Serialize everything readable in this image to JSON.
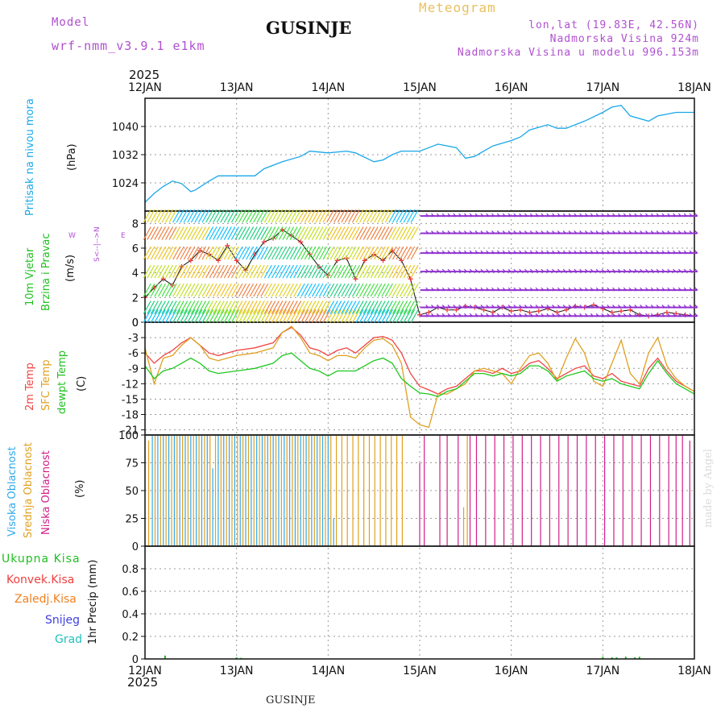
{
  "header": {
    "model_label": "Model",
    "model_name": "wrf-nmm_v3.9.1 e1km",
    "station": "GUSINJE",
    "product": "Meteogram",
    "coords": "lon,lat (19.83E, 42.56N)",
    "altitude": "Nadmorska Visina 924m",
    "model_altitude": "Nadmorska Visina u modelu 996.153m",
    "year_top": "2025",
    "year_bottom": "2025",
    "footer_station": "GUSINJE",
    "credit": "made by Angel"
  },
  "colors": {
    "pressure": "#1aa7e8",
    "t2m": "#f04545",
    "sfc": "#e0a020",
    "dewpt": "#20c820",
    "high_cloud": "#30a8e8",
    "mid_cloud": "#e0a020",
    "low_cloud": "#d0208a",
    "total_precip": "#20c020",
    "conv_precip": "#f04040",
    "frz_precip": "#f08020",
    "snow": "#4040e0",
    "hail": "#20c0c0",
    "model_label": "#b050d0"
  },
  "x_axis": {
    "ticks": [
      "12JAN",
      "13JAN",
      "14JAN",
      "15JAN",
      "16JAN",
      "17JAN",
      "18JAN"
    ]
  },
  "panel_labels": {
    "pressure": {
      "name": "Pritisak na nivou mora",
      "unit": "(hPa)"
    },
    "wind": {
      "name1": "10m Vjetar",
      "name2": "Brzina i Pravac",
      "unit": "(m/s)",
      "compass_ns": "S<--|-->N",
      "compass_w": "W",
      "compass_e": "E"
    },
    "temp": {
      "name1": "2m Temp",
      "name2": "SFC Temp",
      "name3": "dewpt Temp",
      "unit": "(C)"
    },
    "cloud": {
      "name1": "Visoka Oblacnost",
      "name2": "Srednja Oblacnost",
      "name3": "Niska Oblacnost",
      "unit": "(%)"
    },
    "precip": {
      "l1": "Ukupna Kisa",
      "l2": "Konvek.Kisa",
      "l3": "Zaledj.Kisa",
      "l4": "Snijeg",
      "l5": "Grad",
      "unit": "1hr Precip (mm)"
    }
  },
  "chart_data": [
    {
      "type": "line",
      "panel": "pressure",
      "ylabel": "(hPa)",
      "ylim": [
        1016,
        1048
      ],
      "yticks": [
        1024,
        1032,
        1040
      ],
      "x_unit": "days since 12JAN 00Z",
      "series": [
        {
          "name": "Pritisak na nivou mora",
          "x": [
            0,
            0.1,
            0.2,
            0.3,
            0.4,
            0.5,
            0.55,
            0.7,
            0.8,
            0.9,
            1.0,
            1.2,
            1.3,
            1.5,
            1.7,
            1.8,
            2.0,
            2.2,
            2.3,
            2.5,
            2.6,
            2.7,
            2.8,
            3.0,
            3.1,
            3.2,
            3.4,
            3.5,
            3.6,
            3.7,
            3.8,
            4.0,
            4.1,
            4.2,
            4.4,
            4.5,
            4.6,
            4.8,
            5.0,
            5.1,
            5.2,
            5.3,
            5.5,
            5.6,
            5.8,
            6.0
          ],
          "values": [
            1018.5,
            1021,
            1023,
            1024.5,
            1023.8,
            1021.5,
            1022,
            1024.5,
            1026,
            1026,
            1026,
            1026,
            1028,
            1030,
            1031.5,
            1033,
            1032.5,
            1033,
            1032.5,
            1030,
            1030.5,
            1032,
            1033,
            1033,
            1034,
            1035,
            1034,
            1031,
            1031.5,
            1033,
            1034.5,
            1036,
            1037,
            1039,
            1040.5,
            1039.5,
            1039.5,
            1041.5,
            1044,
            1045.5,
            1046,
            1043,
            1041.5,
            1043,
            1044,
            1044
          ]
        }
      ]
    },
    {
      "type": "line",
      "panel": "wind",
      "ylabel": "(m/s)",
      "ylim": [
        0,
        9
      ],
      "yticks": [
        0,
        2,
        4,
        6,
        8
      ],
      "x_unit": "days since 12JAN 00Z",
      "series": [
        {
          "name": "10m Vjetar",
          "x": [
            0,
            0.1,
            0.2,
            0.3,
            0.4,
            0.5,
            0.6,
            0.7,
            0.8,
            0.9,
            1.0,
            1.1,
            1.2,
            1.3,
            1.4,
            1.5,
            1.6,
            1.7,
            1.8,
            1.9,
            2.0,
            2.1,
            2.2,
            2.3,
            2.4,
            2.5,
            2.6,
            2.7,
            2.8,
            2.9,
            3.0,
            3.1,
            3.2,
            3.3,
            3.4,
            3.5,
            3.6,
            3.7,
            3.8,
            3.9,
            4.0,
            4.1,
            4.2,
            4.3,
            4.4,
            4.5,
            4.6,
            4.7,
            4.8,
            4.9,
            5.0,
            5.1,
            5.2,
            5.3,
            5.4,
            5.5,
            5.6,
            5.7,
            5.8,
            5.9,
            6.0
          ],
          "values": [
            2.0,
            2.8,
            3.5,
            3.0,
            4.5,
            5.0,
            5.8,
            5.5,
            5.0,
            6.2,
            5.0,
            4.2,
            5.5,
            6.5,
            6.8,
            7.5,
            7.0,
            6.5,
            5.5,
            4.5,
            3.8,
            5.0,
            5.2,
            3.5,
            5.0,
            5.5,
            5.0,
            5.8,
            5.0,
            3.5,
            0.6,
            0.8,
            1.2,
            1.0,
            1.0,
            1.3,
            1.2,
            1.0,
            0.8,
            1.2,
            0.9,
            1.0,
            0.8,
            0.9,
            1.1,
            0.8,
            1.0,
            1.3,
            1.2,
            1.4,
            1.1,
            0.8,
            0.9,
            1.0,
            0.6,
            0.5,
            0.6,
            0.8,
            0.7,
            0.6,
            0.5
          ]
        }
      ]
    },
    {
      "type": "line",
      "panel": "temperature",
      "ylabel": "(C)",
      "ylim": [
        -22,
        0
      ],
      "yticks": [
        0,
        -3,
        -6,
        -9,
        -12,
        -15,
        -18,
        -21
      ],
      "x_unit": "days since 12JAN 00Z",
      "series": [
        {
          "name": "2m Temp",
          "x": [
            0,
            0.1,
            0.2,
            0.3,
            0.4,
            0.5,
            0.6,
            0.7,
            0.8,
            1.0,
            1.2,
            1.4,
            1.5,
            1.6,
            1.7,
            1.8,
            1.9,
            2.0,
            2.1,
            2.2,
            2.3,
            2.4,
            2.5,
            2.6,
            2.7,
            2.8,
            2.9,
            3.0,
            3.1,
            3.2,
            3.3,
            3.4,
            3.5,
            3.6,
            3.7,
            3.8,
            3.9,
            4.0,
            4.1,
            4.2,
            4.3,
            4.4,
            4.5,
            4.6,
            4.7,
            4.8,
            4.9,
            5.0,
            5.1,
            5.2,
            5.3,
            5.4,
            5.5,
            5.6,
            5.7,
            5.8,
            5.9,
            6.0
          ],
          "values": [
            -6,
            -8,
            -6.5,
            -5.5,
            -4,
            -3,
            -4.5,
            -6,
            -6.5,
            -5.5,
            -5,
            -4,
            -2,
            -1,
            -2.5,
            -5,
            -5.5,
            -6.5,
            -5.5,
            -5,
            -6,
            -4.5,
            -3,
            -2.8,
            -3.5,
            -6,
            -10,
            -12.5,
            -13.2,
            -14,
            -13,
            -12.5,
            -11,
            -9.5,
            -9.5,
            -10,
            -9,
            -10,
            -9.5,
            -8,
            -7.5,
            -9,
            -11,
            -10,
            -9,
            -8.5,
            -10.5,
            -11,
            -10,
            -11.5,
            -12,
            -12.5,
            -9,
            -7,
            -9.5,
            -11.5,
            -12.5,
            -13.5
          ]
        },
        {
          "name": "SFC Temp",
          "x": [
            0,
            0.1,
            0.2,
            0.3,
            0.4,
            0.5,
            0.6,
            0.7,
            0.8,
            1.0,
            1.2,
            1.4,
            1.5,
            1.6,
            1.7,
            1.8,
            1.9,
            2.0,
            2.1,
            2.2,
            2.3,
            2.4,
            2.5,
            2.6,
            2.7,
            2.8,
            2.9,
            3.0,
            3.1,
            3.2,
            3.3,
            3.4,
            3.5,
            3.6,
            3.7,
            3.8,
            3.9,
            4.0,
            4.1,
            4.2,
            4.3,
            4.4,
            4.5,
            4.6,
            4.7,
            4.8,
            4.9,
            5.0,
            5.1,
            5.2,
            5.3,
            5.4,
            5.5,
            5.6,
            5.7,
            5.8,
            5.9,
            6.0
          ],
          "values": [
            -5,
            -12,
            -7,
            -6.5,
            -4.5,
            -3,
            -4.5,
            -7,
            -7.5,
            -6.5,
            -6,
            -5,
            -2,
            -0.8,
            -3,
            -6,
            -6.5,
            -7.5,
            -6.5,
            -6.5,
            -7,
            -5,
            -3.5,
            -3.2,
            -4.5,
            -8,
            -18.5,
            -20,
            -20.5,
            -14,
            -14,
            -13,
            -12,
            -9.5,
            -9,
            -9.5,
            -10,
            -12,
            -9,
            -6.5,
            -6,
            -8,
            -11.5,
            -7,
            -3.2,
            -6,
            -11.5,
            -12.5,
            -8,
            -3.5,
            -10,
            -12,
            -6,
            -3,
            -8.5,
            -11,
            -12.5,
            -13.5
          ]
        },
        {
          "name": "dewpt Temp",
          "x": [
            0,
            0.1,
            0.2,
            0.3,
            0.4,
            0.5,
            0.6,
            0.7,
            0.8,
            1.0,
            1.2,
            1.4,
            1.5,
            1.6,
            1.7,
            1.8,
            1.9,
            2.0,
            2.1,
            2.2,
            2.3,
            2.4,
            2.5,
            2.6,
            2.7,
            2.8,
            2.9,
            3.0,
            3.1,
            3.2,
            3.3,
            3.4,
            3.5,
            3.6,
            3.7,
            3.8,
            3.9,
            4.0,
            4.1,
            4.2,
            4.3,
            4.4,
            4.5,
            4.6,
            4.7,
            4.8,
            4.9,
            5.0,
            5.1,
            5.2,
            5.3,
            5.4,
            5.5,
            5.6,
            5.7,
            5.8,
            5.9,
            6.0
          ],
          "values": [
            -8.5,
            -11,
            -9.5,
            -9,
            -8,
            -7,
            -8,
            -9.5,
            -10,
            -9.5,
            -9,
            -8,
            -6.5,
            -6,
            -7.5,
            -9,
            -9.5,
            -10.5,
            -9.5,
            -9.5,
            -9.5,
            -8.5,
            -7.5,
            -7,
            -8,
            -11,
            -12.5,
            -13.8,
            -14,
            -14.5,
            -13.5,
            -13,
            -11.5,
            -10,
            -10,
            -10.5,
            -10,
            -10.5,
            -10,
            -8.5,
            -8.5,
            -9.5,
            -11.5,
            -10.5,
            -10,
            -9.5,
            -11,
            -11.5,
            -11,
            -12,
            -12.5,
            -13,
            -10,
            -7.5,
            -10,
            -12,
            -13,
            -14
          ]
        }
      ]
    },
    {
      "type": "bar",
      "panel": "cloud",
      "ylabel": "(%)",
      "ylim": [
        0,
        100
      ],
      "yticks": [
        0,
        25,
        50,
        75,
        100
      ],
      "x_unit": "days since 12JAN 00Z",
      "series": [
        {
          "name": "Visoka Oblacnost",
          "x": [
            0.08,
            0.14,
            0.2,
            0.26,
            0.32,
            0.38,
            0.44,
            0.5,
            0.56,
            0.62,
            0.68,
            0.74,
            0.8,
            0.86,
            0.92,
            0.98,
            1.04,
            1.1,
            1.16,
            1.22,
            1.28,
            1.34,
            1.4,
            1.46,
            1.52,
            1.58,
            1.64,
            1.7,
            1.76,
            1.82,
            1.88,
            1.94,
            2.0,
            2.06
          ],
          "values": [
            100,
            100,
            100,
            100,
            100,
            100,
            100,
            100,
            100,
            100,
            100,
            70,
            100,
            100,
            100,
            100,
            100,
            100,
            100,
            100,
            100,
            100,
            100,
            100,
            100,
            100,
            100,
            100,
            100,
            100,
            100,
            100,
            100,
            25
          ]
        },
        {
          "name": "Srednja Oblacnost",
          "x": [
            0.04,
            0.11,
            0.17,
            0.23,
            0.29,
            0.35,
            0.41,
            0.47,
            0.53,
            0.59,
            0.65,
            0.71,
            0.77,
            0.83,
            0.89,
            0.95,
            1.01,
            1.07,
            1.13,
            1.19,
            1.25,
            1.31,
            1.37,
            1.43,
            1.49,
            1.55,
            1.61,
            1.67,
            1.73,
            1.79,
            1.85,
            1.91,
            1.97,
            2.03,
            2.09,
            2.15,
            2.21,
            2.27,
            2.33,
            2.39,
            2.45,
            2.51,
            2.57,
            2.63,
            2.69,
            2.75,
            2.81,
            3.48,
            3.52
          ],
          "values": [
            95,
            100,
            100,
            100,
            100,
            100,
            100,
            100,
            100,
            100,
            100,
            100,
            100,
            100,
            100,
            100,
            100,
            100,
            100,
            100,
            100,
            100,
            100,
            100,
            100,
            100,
            100,
            100,
            100,
            100,
            100,
            100,
            100,
            100,
            100,
            100,
            100,
            100,
            100,
            100,
            100,
            100,
            100,
            100,
            100,
            100,
            100,
            35,
            100
          ]
        },
        {
          "name": "Niska Oblacnost",
          "x": [
            3.0,
            3.05,
            3.22,
            3.3,
            3.42,
            3.55,
            3.62,
            3.72,
            3.82,
            3.92,
            4.02,
            4.12,
            4.22,
            4.32,
            4.42,
            4.52,
            4.62,
            4.72,
            4.82,
            4.92,
            5.02,
            5.12,
            5.22,
            5.32,
            5.42,
            5.52,
            5.62,
            5.72,
            5.8,
            5.87,
            5.95
          ],
          "values": [
            75,
            100,
            100,
            100,
            100,
            100,
            100,
            100,
            100,
            100,
            100,
            100,
            100,
            100,
            100,
            100,
            100,
            100,
            100,
            100,
            100,
            100,
            100,
            100,
            100,
            100,
            100,
            100,
            100,
            100,
            95
          ]
        }
      ]
    },
    {
      "type": "bar",
      "panel": "precip",
      "ylabel": "1hr Precip (mm)",
      "ylim": [
        0,
        1.0
      ],
      "yticks": [
        0,
        0.2,
        0.4,
        0.6,
        0.8
      ],
      "x_unit": "days since 12JAN 00Z",
      "series": [
        {
          "name": "Ukupna Kisa",
          "x": [
            0.22,
            1.0,
            1.05,
            5.0,
            5.1,
            5.15,
            5.25,
            5.35,
            5.4
          ],
          "values": [
            0.03,
            0.015,
            0.01,
            0.02,
            0.015,
            0.015,
            0.02,
            0.015,
            0.02
          ]
        }
      ]
    }
  ]
}
